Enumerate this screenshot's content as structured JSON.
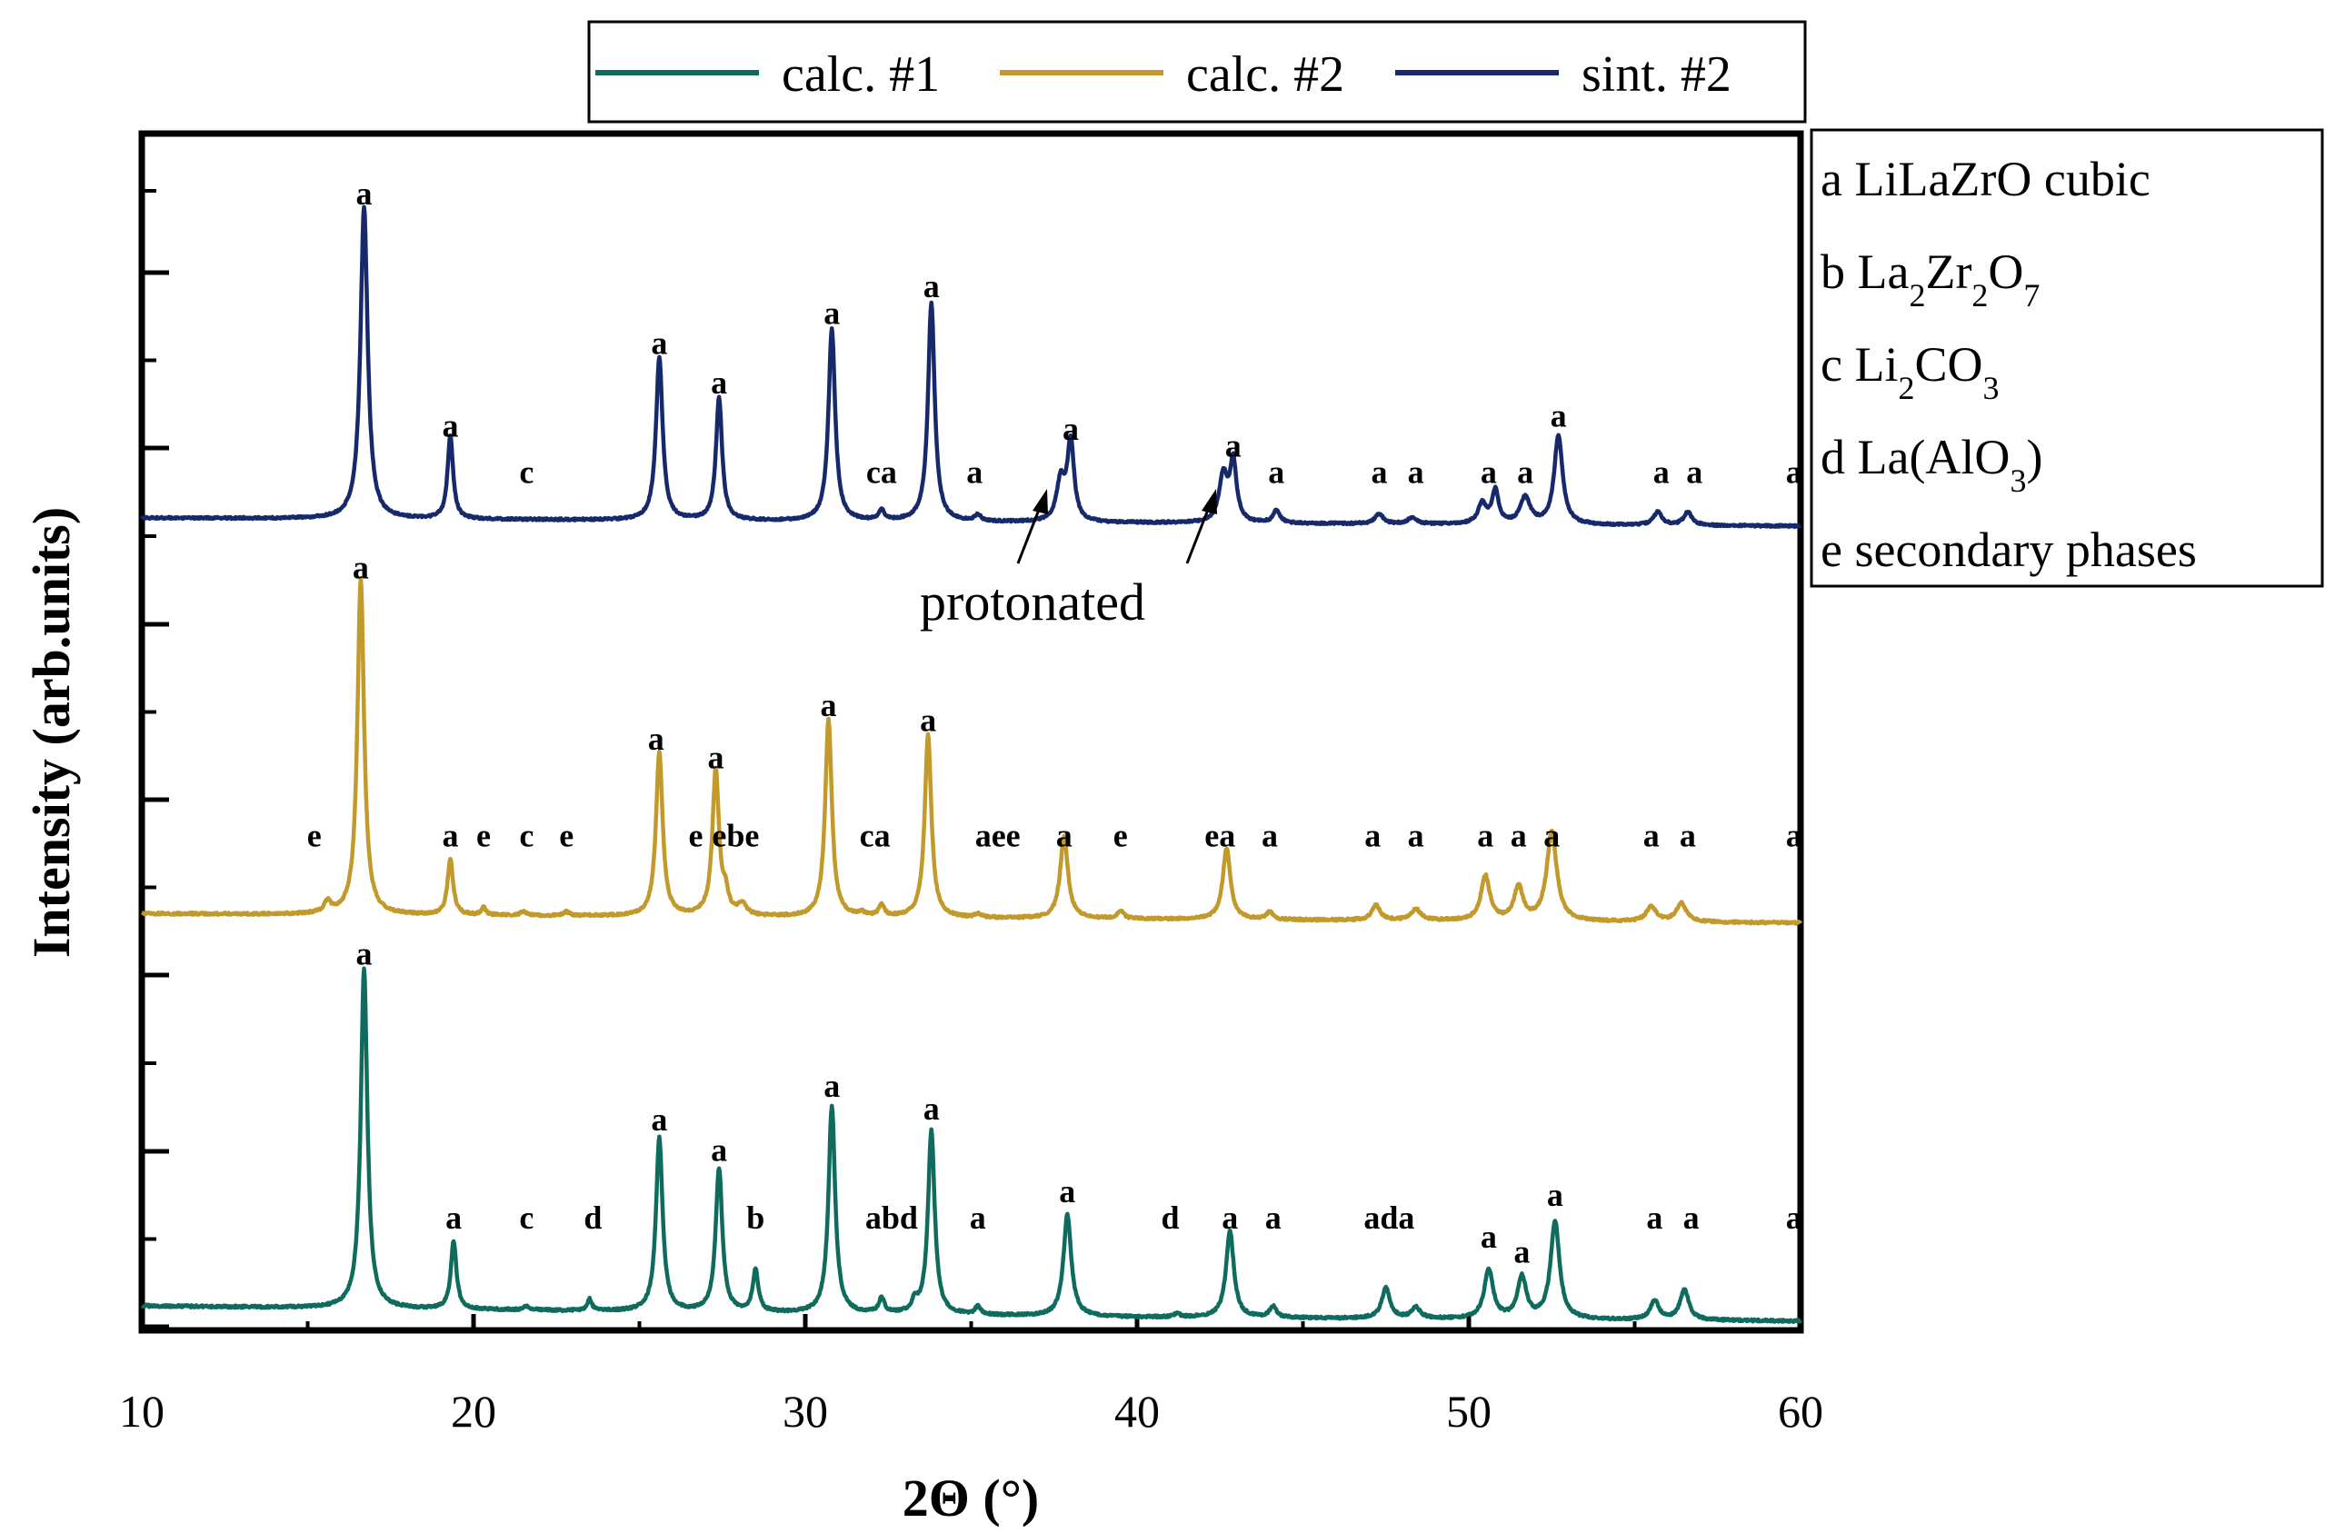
{
  "chart_data": {
    "type": "line",
    "title": "",
    "xlabel": "2Θ (°)",
    "ylabel": "Intensity (arb.units)",
    "xlim": [
      10,
      60
    ],
    "x_ticks": [
      "10",
      "20",
      "30",
      "40",
      "50",
      "60"
    ],
    "legend": {
      "placement": "top",
      "entries": [
        {
          "name": "calc. #1",
          "color": "#0f6b5e"
        },
        {
          "name": "calc. #2",
          "color": "#c29a2b"
        },
        {
          "name": "sint. #2",
          "color": "#16296b"
        }
      ]
    },
    "phase_legend": [
      {
        "letter": "a",
        "text": "LiLaZrO cubic"
      },
      {
        "letter": "b",
        "text": "La2Zr2O7",
        "pre": "La",
        "s1": "2",
        "m1": "Zr",
        "s2": "2",
        "m2": "O",
        "s3": "7"
      },
      {
        "letter": "c",
        "text": "Li2CO3",
        "pre": "Li",
        "s1": "2",
        "m1": "CO",
        "s2": "3"
      },
      {
        "letter": "d",
        "text": "La(AlO3)",
        "pre": "La(AlO",
        "s1": "3",
        "post": ")"
      },
      {
        "letter": "e",
        "text": "secondary phases"
      }
    ],
    "annotation": "protonated",
    "series": [
      {
        "name": "sint. #2",
        "color": "#16296b",
        "baseline": [
          [
            10,
            0.055
          ],
          [
            20,
            0.05
          ],
          [
            30,
            0.045
          ],
          [
            40,
            0.04
          ],
          [
            50,
            0.035
          ],
          [
            60,
            0.03
          ]
        ],
        "peaks": [
          [
            16.7,
            0.94,
            0.13
          ],
          [
            19.3,
            0.25,
            0.1
          ],
          [
            25.6,
            0.49,
            0.12
          ],
          [
            27.4,
            0.37,
            0.11
          ],
          [
            30.8,
            0.58,
            0.12
          ],
          [
            32.3,
            0.03,
            0.1
          ],
          [
            33.8,
            0.66,
            0.12
          ],
          [
            35.2,
            0.02,
            0.1
          ],
          [
            37.7,
            0.12,
            0.15
          ],
          [
            38.0,
            0.24,
            0.12
          ],
          [
            42.6,
            0.14,
            0.15
          ],
          [
            42.9,
            0.18,
            0.12
          ],
          [
            44.2,
            0.04,
            0.12
          ],
          [
            47.3,
            0.03,
            0.15
          ],
          [
            48.3,
            0.02,
            0.15
          ],
          [
            50.4,
            0.06,
            0.15
          ],
          [
            50.8,
            0.1,
            0.12
          ],
          [
            51.7,
            0.08,
            0.18
          ],
          [
            52.7,
            0.27,
            0.15
          ],
          [
            55.7,
            0.04,
            0.15
          ],
          [
            56.6,
            0.04,
            0.15
          ]
        ],
        "labels": [
          {
            "x": 16.7,
            "y": 1.0,
            "text": "a"
          },
          {
            "x": 19.3,
            "y": 0.3,
            "text": "a"
          },
          {
            "x": 21.6,
            "y": 0.16,
            "text": "c"
          },
          {
            "x": 25.6,
            "y": 0.55,
            "text": "a"
          },
          {
            "x": 27.4,
            "y": 0.43,
            "text": "a"
          },
          {
            "x": 30.8,
            "y": 0.64,
            "text": "a"
          },
          {
            "x": 32.3,
            "y": 0.16,
            "text": "ca"
          },
          {
            "x": 33.8,
            "y": 0.72,
            "text": "a"
          },
          {
            "x": 35.1,
            "y": 0.16,
            "text": "a"
          },
          {
            "x": 38.0,
            "y": 0.29,
            "text": "a"
          },
          {
            "x": 42.9,
            "y": 0.24,
            "text": "a"
          },
          {
            "x": 44.2,
            "y": 0.16,
            "text": "a"
          },
          {
            "x": 47.3,
            "y": 0.16,
            "text": "a"
          },
          {
            "x": 48.4,
            "y": 0.16,
            "text": "a"
          },
          {
            "x": 50.6,
            "y": 0.16,
            "text": "a"
          },
          {
            "x": 51.7,
            "y": 0.16,
            "text": "a"
          },
          {
            "x": 52.7,
            "y": 0.33,
            "text": "a"
          },
          {
            "x": 55.8,
            "y": 0.16,
            "text": "a"
          },
          {
            "x": 56.8,
            "y": 0.16,
            "text": "a"
          },
          {
            "x": 59.8,
            "y": 0.16,
            "text": "a"
          }
        ]
      },
      {
        "name": "calc. #2",
        "color": "#c29a2b",
        "baseline": [
          [
            10,
            0.06
          ],
          [
            20,
            0.055
          ],
          [
            30,
            0.05
          ],
          [
            40,
            0.045
          ],
          [
            50,
            0.04
          ],
          [
            60,
            0.035
          ]
        ],
        "peaks": [
          [
            15.6,
            0.03,
            0.12
          ],
          [
            16.6,
            0.9,
            0.12
          ],
          [
            19.3,
            0.15,
            0.1
          ],
          [
            20.3,
            0.02,
            0.08
          ],
          [
            21.5,
            0.01,
            0.1
          ],
          [
            22.8,
            0.01,
            0.1
          ],
          [
            25.6,
            0.44,
            0.12
          ],
          [
            27.3,
            0.39,
            0.12
          ],
          [
            27.6,
            0.05,
            0.1
          ],
          [
            28.1,
            0.03,
            0.15
          ],
          [
            30.7,
            0.53,
            0.12
          ],
          [
            31.7,
            0.01,
            0.1
          ],
          [
            32.3,
            0.03,
            0.1
          ],
          [
            33.7,
            0.49,
            0.12
          ],
          [
            35.2,
            0.01,
            0.1
          ],
          [
            37.8,
            0.22,
            0.14
          ],
          [
            39.5,
            0.02,
            0.12
          ],
          [
            42.7,
            0.19,
            0.14
          ],
          [
            44.0,
            0.02,
            0.12
          ],
          [
            47.2,
            0.04,
            0.15
          ],
          [
            48.4,
            0.03,
            0.18
          ],
          [
            50.5,
            0.12,
            0.16
          ],
          [
            51.5,
            0.09,
            0.16
          ],
          [
            52.5,
            0.24,
            0.18
          ],
          [
            55.5,
            0.04,
            0.18
          ],
          [
            56.4,
            0.05,
            0.18
          ]
        ],
        "labels": [
          {
            "x": 15.2,
            "y": 0.24,
            "text": "e"
          },
          {
            "x": 16.6,
            "y": 0.96,
            "text": "a"
          },
          {
            "x": 19.3,
            "y": 0.24,
            "text": "a"
          },
          {
            "x": 20.3,
            "y": 0.24,
            "text": "e"
          },
          {
            "x": 21.6,
            "y": 0.24,
            "text": "c"
          },
          {
            "x": 22.8,
            "y": 0.24,
            "text": "e"
          },
          {
            "x": 25.5,
            "y": 0.5,
            "text": "a"
          },
          {
            "x": 26.7,
            "y": 0.24,
            "text": "e"
          },
          {
            "x": 27.3,
            "y": 0.45,
            "text": "a"
          },
          {
            "x": 27.9,
            "y": 0.24,
            "text": "ebe"
          },
          {
            "x": 30.7,
            "y": 0.59,
            "text": "a"
          },
          {
            "x": 32.1,
            "y": 0.24,
            "text": "ca"
          },
          {
            "x": 33.7,
            "y": 0.55,
            "text": "a"
          },
          {
            "x": 35.8,
            "y": 0.24,
            "text": "aee"
          },
          {
            "x": 37.8,
            "y": 0.24,
            "text": "a"
          },
          {
            "x": 39.5,
            "y": 0.24,
            "text": "e"
          },
          {
            "x": 42.5,
            "y": 0.24,
            "text": "ea"
          },
          {
            "x": 44.0,
            "y": 0.24,
            "text": "a"
          },
          {
            "x": 47.1,
            "y": 0.24,
            "text": "a"
          },
          {
            "x": 48.4,
            "y": 0.24,
            "text": "a"
          },
          {
            "x": 50.5,
            "y": 0.24,
            "text": "a"
          },
          {
            "x": 51.5,
            "y": 0.24,
            "text": "a"
          },
          {
            "x": 52.5,
            "y": 0.24,
            "text": "a"
          },
          {
            "x": 55.5,
            "y": 0.24,
            "text": "a"
          },
          {
            "x": 56.6,
            "y": 0.24,
            "text": "a"
          },
          {
            "x": 59.8,
            "y": 0.24,
            "text": "a"
          }
        ]
      },
      {
        "name": "calc. #1",
        "color": "#0f6b5e",
        "baseline": [
          [
            10,
            0.055
          ],
          [
            20,
            0.045
          ],
          [
            30,
            0.035
          ],
          [
            40,
            0.025
          ],
          [
            50,
            0.02
          ],
          [
            60,
            0.015
          ]
        ],
        "peaks": [
          [
            16.7,
            0.9,
            0.12
          ],
          [
            19.4,
            0.18,
            0.1
          ],
          [
            21.6,
            0.01,
            0.1
          ],
          [
            23.5,
            0.03,
            0.08
          ],
          [
            25.6,
            0.46,
            0.12
          ],
          [
            27.4,
            0.38,
            0.12
          ],
          [
            28.5,
            0.11,
            0.1
          ],
          [
            30.8,
            0.55,
            0.12
          ],
          [
            32.3,
            0.04,
            0.1
          ],
          [
            33.3,
            0.03,
            0.1
          ],
          [
            33.8,
            0.49,
            0.12
          ],
          [
            35.2,
            0.02,
            0.1
          ],
          [
            37.9,
            0.27,
            0.14
          ],
          [
            41.2,
            0.01,
            0.1
          ],
          [
            42.8,
            0.23,
            0.14
          ],
          [
            44.1,
            0.03,
            0.12
          ],
          [
            47.5,
            0.08,
            0.15
          ],
          [
            48.4,
            0.03,
            0.15
          ],
          [
            50.6,
            0.13,
            0.16
          ],
          [
            51.6,
            0.11,
            0.16
          ],
          [
            52.6,
            0.26,
            0.16
          ],
          [
            55.6,
            0.05,
            0.16
          ],
          [
            56.5,
            0.08,
            0.16
          ]
        ],
        "labels": [
          {
            "x": 16.7,
            "y": 0.96,
            "text": "a"
          },
          {
            "x": 19.4,
            "y": 0.26,
            "text": "a"
          },
          {
            "x": 21.6,
            "y": 0.26,
            "text": "c"
          },
          {
            "x": 23.6,
            "y": 0.26,
            "text": "d"
          },
          {
            "x": 25.6,
            "y": 0.52,
            "text": "a"
          },
          {
            "x": 27.4,
            "y": 0.44,
            "text": "a"
          },
          {
            "x": 28.5,
            "y": 0.26,
            "text": "b"
          },
          {
            "x": 30.8,
            "y": 0.61,
            "text": "a"
          },
          {
            "x": 32.6,
            "y": 0.26,
            "text": "abd"
          },
          {
            "x": 33.8,
            "y": 0.55,
            "text": "a"
          },
          {
            "x": 35.2,
            "y": 0.26,
            "text": "a"
          },
          {
            "x": 37.9,
            "y": 0.33,
            "text": "a"
          },
          {
            "x": 41.0,
            "y": 0.26,
            "text": "d"
          },
          {
            "x": 42.8,
            "y": 0.26,
            "text": "a"
          },
          {
            "x": 44.1,
            "y": 0.26,
            "text": "a"
          },
          {
            "x": 47.6,
            "y": 0.26,
            "text": "ada"
          },
          {
            "x": 50.6,
            "y": 0.21,
            "text": "a"
          },
          {
            "x": 51.6,
            "y": 0.17,
            "text": "a"
          },
          {
            "x": 52.6,
            "y": 0.32,
            "text": "a"
          },
          {
            "x": 55.6,
            "y": 0.26,
            "text": "a"
          },
          {
            "x": 56.7,
            "y": 0.26,
            "text": "a"
          },
          {
            "x": 59.8,
            "y": 0.26,
            "text": "a"
          }
        ]
      }
    ]
  }
}
